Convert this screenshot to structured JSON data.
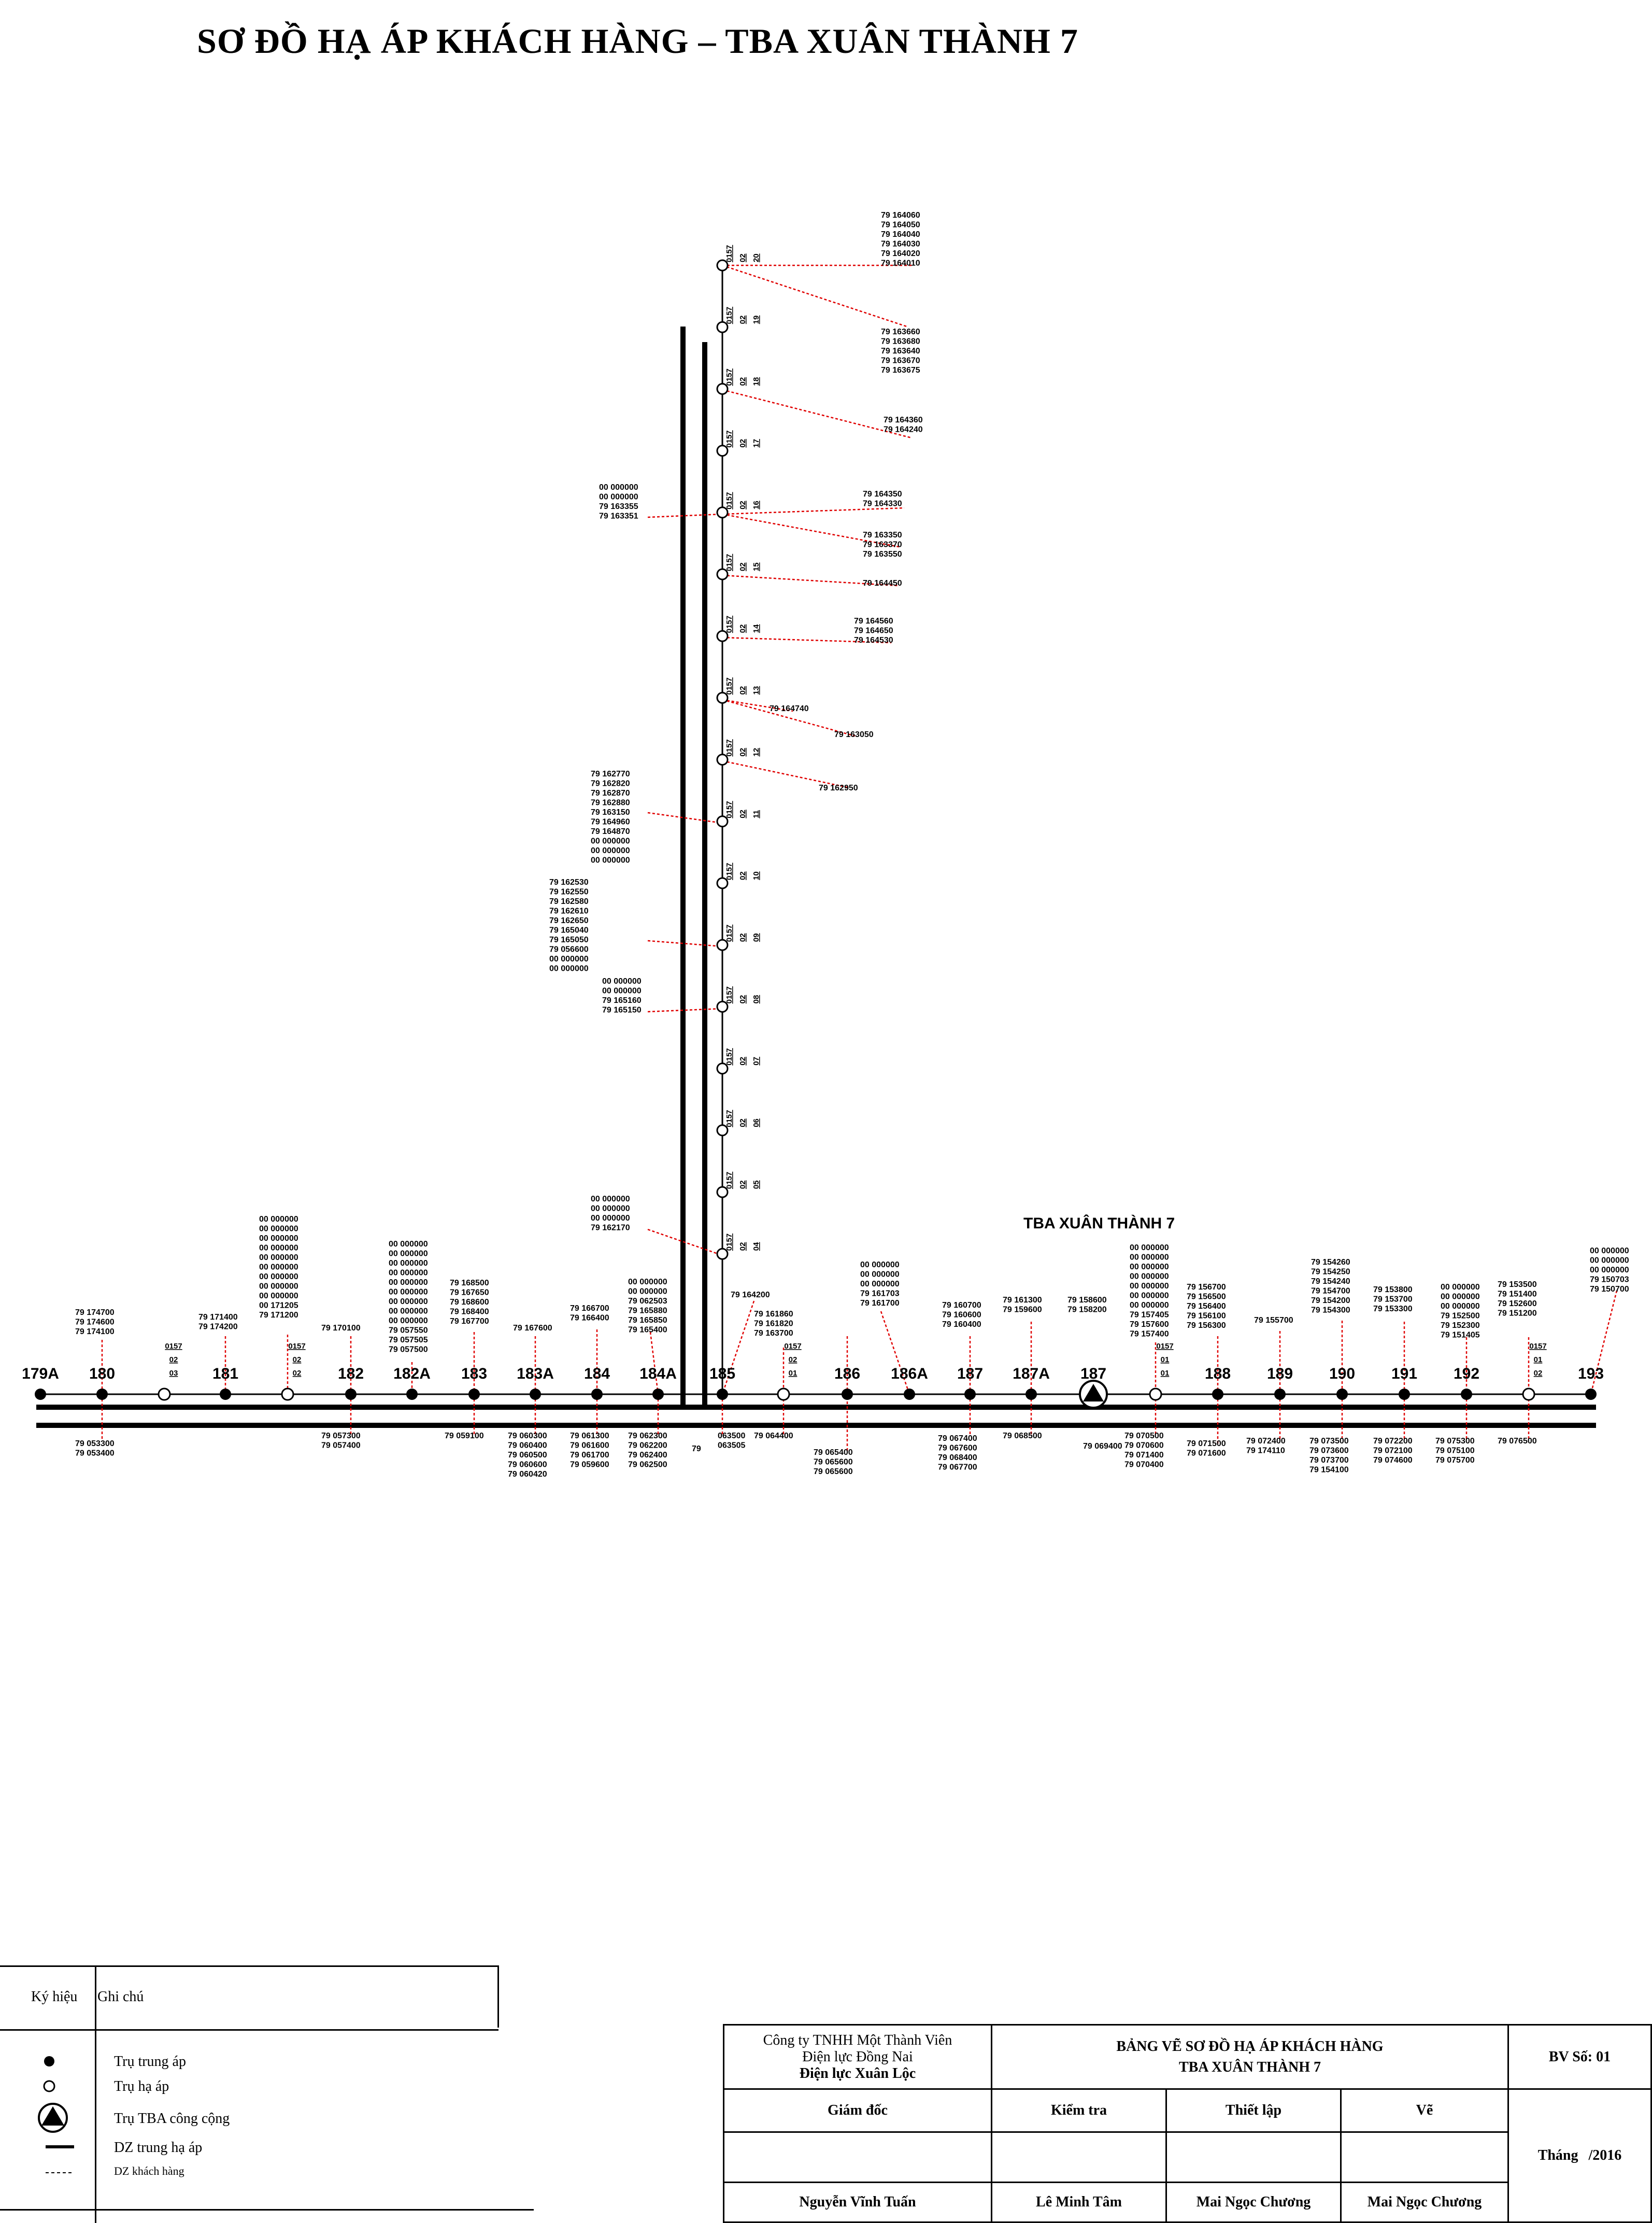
{
  "title": "SƠ ĐỒ HẠ ÁP KHÁCH HÀNG – TBA XUÂN THÀNH 7",
  "station_label": "TBA XUÂN THÀNH 7",
  "main_poles": [
    "179A",
    "180",
    "181",
    "182",
    "182A",
    "183",
    "183A",
    "184",
    "184A",
    "185",
    "186",
    "186A",
    "187",
    "187A",
    "187",
    "188",
    "189",
    "190",
    "191",
    "192",
    "193"
  ],
  "pole_codes": {
    "p0157_02_03": [
      "0157",
      "02",
      "03"
    ],
    "p0157_02_02": [
      "0157",
      "02",
      "02"
    ],
    "p0157_02_01": [
      "0157",
      "02",
      "01"
    ],
    "p0157_01_01": [
      "0157",
      "01",
      "01"
    ],
    "p0157_01_02": [
      "0157",
      "01",
      "02"
    ]
  },
  "branch_poles": [
    "0157 02 20",
    "0157 02 19",
    "0157 02 18",
    "0157 02 17",
    "0157 02 16",
    "0157 02 15",
    "0157 02 14",
    "0157 02 13",
    "0157 02 12",
    "0157 02 11",
    "0157 02 10",
    "0157 02 09",
    "0157 02 08",
    "0157 02 07",
    "0157 02 06",
    "0157 02 05",
    "0157 02 04"
  ],
  "customers": {
    "b20": [
      "79  164060",
      "79  164050",
      "79  164040",
      "79  164030",
      "79  164020",
      "79  164010"
    ],
    "b19": [
      "79  163660",
      "79  163680",
      "79  163640",
      "79  163670",
      "79  163675"
    ],
    "b17": [
      "79  164360",
      "79  164240"
    ],
    "b16l": [
      "00  000000",
      "00  000000",
      "79  163355",
      "79  163351"
    ],
    "b16r": [
      "79  164350",
      "79  164330"
    ],
    "b15": [
      "79  163350",
      "79  163370",
      "79  163550"
    ],
    "b15b": [
      "79  164450"
    ],
    "b14": [
      "79  164560",
      "79  164650",
      "79  164530"
    ],
    "b13a": [
      "79  164740"
    ],
    "b13b": [
      "79  163050"
    ],
    "b12": [
      "79  162950"
    ],
    "b11": [
      "79  162770",
      "79  162820",
      "79  162870",
      "79  162880",
      "79  163150",
      "79  164960",
      "79  164870",
      "00  000000",
      "00  000000",
      "00  000000"
    ],
    "b09": [
      "79  162530",
      "79  162550",
      "79  162580",
      "79  162610",
      "79  162650",
      "79  165040",
      "79  165050",
      "79  056600",
      "00  000000",
      "00  000000"
    ],
    "b08": [
      "00  000000",
      "00  000000",
      "79  165160",
      "79  165150"
    ],
    "b04": [
      "00  000000",
      "00  000000",
      "00  000000",
      "79  162170"
    ],
    "t180": [
      "79  174700",
      "79  174600",
      "79  174100"
    ],
    "t181": [
      "79  171400",
      "79  174200"
    ],
    "t0203": [
      "00  000000",
      "00  000000",
      "00  000000",
      "00  000000",
      "00  000000",
      "00  000000",
      "00  000000",
      "00  000000",
      "00  000000",
      "00  171205",
      "79  171200"
    ],
    "t182": [
      "79  170100"
    ],
    "t182A": [
      "00  000000",
      "00  000000",
      "00  000000",
      "00  000000",
      "00  000000",
      "00  000000",
      "00  000000",
      "00  000000",
      "00  000000",
      "79  057550",
      "79  057505",
      "79  057500"
    ],
    "t183": [
      "79  168500",
      "79  167650",
      "79  168600",
      "79  168400",
      "79  167700"
    ],
    "t183A": [
      "79  167600"
    ],
    "t184": [
      "79  166700",
      "79  166400"
    ],
    "t184A": [
      "00  000000",
      "00  000000",
      "79  062503",
      "79  165880",
      "79  165850",
      "79  165400"
    ],
    "t185": [
      "79  164200"
    ],
    "t0201": [
      "79  161860",
      "79  161820",
      "79  163700"
    ],
    "t186A": [
      "00  000000",
      "00  000000",
      "00  000000",
      "79  161703",
      "79  161700"
    ],
    "t187": [
      "79  160700",
      "79  160600",
      "79  160400"
    ],
    "t187A": [
      "79  161300",
      "79  159600"
    ],
    "t187b": [
      "79  158600",
      "79  158200"
    ],
    "t0101": [
      "00  000000",
      "00  000000",
      "00  000000",
      "00  000000",
      "00  000000",
      "00  000000",
      "00  000000",
      "79  157405",
      "79  157600",
      "79  157400"
    ],
    "t188": [
      "79  156700",
      "79  156500",
      "79  156400",
      "79  156100",
      "79  156300"
    ],
    "t189": [
      "79  155700"
    ],
    "t190": [
      "79  154260",
      "79  154250",
      "79  154240",
      "79  154700",
      "79  154200",
      "79  154300"
    ],
    "t191": [
      "79  153800",
      "79  153700",
      "79  153300"
    ],
    "t192": [
      "00  000000",
      "00  000000",
      "00  000000",
      "79  152500",
      "79  152300",
      "79  151405"
    ],
    "t0102": [
      "79  153500",
      "79  151400",
      "79  152600",
      "79  151200"
    ],
    "t193": [
      "00  000000",
      "00  000000",
      "00  000000",
      "79  150703",
      "79  150700"
    ],
    "d180": [
      "79  053300",
      "79  053400"
    ],
    "d182": [
      "79  057300",
      "79  057400"
    ],
    "d183": [
      "79  059100"
    ],
    "d183A": [
      "79  060300",
      "79  060400",
      "79  060500",
      "79  060600",
      "79  060420"
    ],
    "d184": [
      "79  061300",
      "79  061600",
      "79  061700",
      "79  059600"
    ],
    "d184A": [
      "79  062300",
      "79  062200",
      "79  062400",
      "79  062500"
    ],
    "d185": [
      "063500",
      "063505"
    ],
    "d185b": [
      "79"
    ],
    "d0201": [
      "79  064400"
    ],
    "d186": [
      "79  065400",
      "79  065600",
      "79  065600"
    ],
    "d187": [
      "79  067400",
      "79  067600",
      "79  068400",
      "79  067700"
    ],
    "d187A": [
      "79  068500"
    ],
    "d187b": [
      "79  069400"
    ],
    "d0101": [
      "79  070500",
      "79  070600",
      "79  071400",
      "79  070400"
    ],
    "d188": [
      "79  071500",
      "79  071600"
    ],
    "d189": [
      "79  072400",
      "79  174110"
    ],
    "d190": [
      "79  073500",
      "79  073600",
      "79  073700",
      "79  154100"
    ],
    "d191": [
      "79  072200",
      "79  072100",
      "79  074600"
    ],
    "d192": [
      "79  075300",
      "79  075100",
      "79  075700"
    ],
    "d0102": [
      "79  076500"
    ]
  },
  "legend": {
    "col1": "Ký hiệu",
    "col2": "Ghi chú",
    "items": [
      "Trụ trung áp",
      "Trụ hạ áp",
      "Trụ TBA công cộng",
      "DZ trung hạ áp",
      "DZ khách hàng"
    ]
  },
  "titleblock": {
    "company1": "Công ty TNHH Một Thành Viên",
    "company2": "Điện lực Đồng Nai",
    "company3": "Điện lực Xuân Lộc",
    "heading1": "BẢNG VẼ SƠ ĐỒ HẠ ÁP KHÁCH HÀNG",
    "heading2": "TBA XUÂN THÀNH 7",
    "sheet": "BV Số: 01",
    "giam_doc": "Giám đốc",
    "kiem_tra": "Kiểm tra",
    "thiet_lap": "Thiết lập",
    "ve": "Vẽ",
    "thang": "Tháng",
    "year": "/2016",
    "n1": "Nguyễn Vĩnh Tuấn",
    "n2": "Lê Minh Tâm",
    "n3": "Mai Ngọc Chương",
    "n4": "Mai Ngọc Chương"
  },
  "colors": {
    "line": "#000000",
    "drop": "#e00000"
  }
}
